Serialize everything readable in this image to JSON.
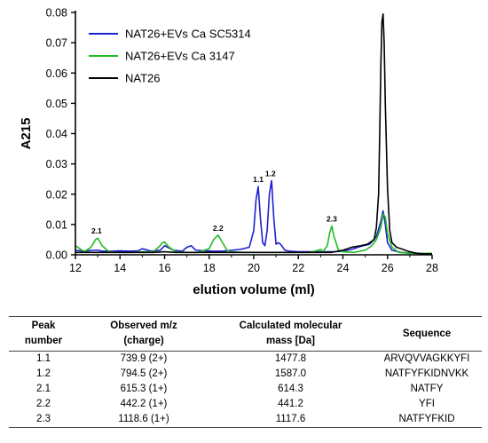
{
  "chart_data": {
    "type": "line",
    "xlabel": "elution volume (ml)",
    "ylabel": "A215",
    "xlim": [
      12,
      28
    ],
    "ylim": [
      0,
      0.08
    ],
    "xticks": [
      "12",
      "14",
      "16",
      "18",
      "20",
      "22",
      "24",
      "26",
      "28"
    ],
    "yticks": [
      "0.00",
      "0.01",
      "0.02",
      "0.03",
      "0.04",
      "0.05",
      "0.06",
      "0.07",
      "0.08"
    ],
    "legend_position": "top-left",
    "series": [
      {
        "name": "NAT26+EVs Ca SC5314",
        "color": "#1f1fd2",
        "x": [
          12.0,
          12.4,
          12.8,
          13.0,
          13.2,
          13.6,
          14.0,
          14.4,
          14.8,
          15.0,
          15.4,
          15.8,
          16.0,
          16.4,
          16.8,
          17.0,
          17.2,
          17.4,
          17.8,
          18.2,
          18.6,
          19.0,
          19.4,
          19.8,
          20.0,
          20.1,
          20.2,
          20.3,
          20.4,
          20.5,
          20.6,
          20.7,
          20.8,
          20.9,
          21.0,
          21.1,
          21.2,
          21.4,
          21.6,
          22.0,
          22.4,
          22.8,
          23.2,
          23.6,
          24.0,
          24.4,
          24.8,
          25.2,
          25.5,
          25.7,
          25.8,
          25.9,
          26.0,
          26.2,
          26.6,
          27.0,
          27.5,
          28.0
        ],
        "y": [
          0.0015,
          0.0012,
          0.0015,
          0.0015,
          0.0012,
          0.0012,
          0.0013,
          0.0012,
          0.0013,
          0.002,
          0.0012,
          0.0015,
          0.003,
          0.0015,
          0.0012,
          0.0025,
          0.003,
          0.0015,
          0.0013,
          0.0012,
          0.0012,
          0.0015,
          0.0018,
          0.0025,
          0.008,
          0.018,
          0.0225,
          0.012,
          0.004,
          0.003,
          0.008,
          0.02,
          0.0245,
          0.012,
          0.0035,
          0.004,
          0.0035,
          0.0015,
          0.0012,
          0.001,
          0.001,
          0.001,
          0.001,
          0.001,
          0.0012,
          0.0018,
          0.0028,
          0.0035,
          0.006,
          0.011,
          0.0145,
          0.01,
          0.004,
          0.0015,
          0.0008,
          0.0006,
          0.0005,
          0.0005
        ]
      },
      {
        "name": "NAT26+EVs Ca 3147",
        "color": "#22bb22",
        "x": [
          12.0,
          12.4,
          12.7,
          12.9,
          13.0,
          13.2,
          13.5,
          14.0,
          14.5,
          15.0,
          15.5,
          15.8,
          15.9,
          16.0,
          16.2,
          16.5,
          17.0,
          17.5,
          18.0,
          18.2,
          18.4,
          18.6,
          18.8,
          19.0,
          19.5,
          20.0,
          20.5,
          21.0,
          21.5,
          22.0,
          22.5,
          22.9,
          23.0,
          23.1,
          23.3,
          23.4,
          23.5,
          23.6,
          23.8,
          24.0,
          24.5,
          25.0,
          25.3,
          25.5,
          25.7,
          25.8,
          25.9,
          26.0,
          26.2,
          26.5,
          27.0,
          28.0
        ],
        "y": [
          0.003,
          0.001,
          0.0025,
          0.005,
          0.0055,
          0.003,
          0.001,
          0.0008,
          0.0008,
          0.001,
          0.001,
          0.003,
          0.004,
          0.0042,
          0.0025,
          0.001,
          0.0008,
          0.0008,
          0.002,
          0.005,
          0.0065,
          0.004,
          0.0015,
          0.001,
          0.0008,
          0.0008,
          0.0008,
          0.0008,
          0.0008,
          0.0008,
          0.0008,
          0.0015,
          0.0018,
          0.001,
          0.003,
          0.007,
          0.0095,
          0.006,
          0.0015,
          0.001,
          0.0008,
          0.0015,
          0.003,
          0.005,
          0.009,
          0.0135,
          0.0125,
          0.007,
          0.0025,
          0.0008,
          0.0005,
          0.0005
        ]
      },
      {
        "name": "NAT26",
        "color": "#000000",
        "x": [
          12.0,
          12.5,
          13.0,
          13.5,
          14.0,
          14.5,
          15.0,
          15.5,
          16.0,
          16.5,
          17.0,
          17.5,
          18.0,
          18.5,
          19.0,
          19.5,
          20.0,
          20.5,
          21.0,
          21.5,
          22.0,
          22.5,
          23.0,
          23.5,
          24.0,
          24.4,
          24.8,
          25.1,
          25.4,
          25.5,
          25.6,
          25.65,
          25.7,
          25.75,
          25.8,
          25.85,
          25.9,
          26.0,
          26.1,
          26.2,
          26.4,
          26.6,
          26.8,
          27.0,
          27.3,
          27.6,
          28.0
        ],
        "y": [
          0.0008,
          0.0008,
          0.0008,
          0.0008,
          0.0008,
          0.0008,
          0.0008,
          0.0008,
          0.001,
          0.0008,
          0.0008,
          0.0008,
          0.0008,
          0.0008,
          0.0008,
          0.0008,
          0.0008,
          0.0008,
          0.0008,
          0.0008,
          0.0008,
          0.0008,
          0.0008,
          0.0008,
          0.0015,
          0.0025,
          0.003,
          0.0035,
          0.005,
          0.009,
          0.02,
          0.04,
          0.062,
          0.077,
          0.0795,
          0.07,
          0.05,
          0.022,
          0.008,
          0.004,
          0.0025,
          0.002,
          0.0015,
          0.001,
          0.0005,
          0.0003,
          0.0003
        ]
      }
    ],
    "peak_labels": [
      {
        "text": "2.1",
        "x": 12.95,
        "y": 0.0055
      },
      {
        "text": "2.2",
        "x": 18.4,
        "y": 0.0065
      },
      {
        "text": "1.1",
        "x": 20.2,
        "y": 0.0225
      },
      {
        "text": "1.2",
        "x": 20.75,
        "y": 0.0245
      },
      {
        "text": "2.3",
        "x": 23.5,
        "y": 0.0095
      }
    ]
  },
  "table": {
    "headers": {
      "peak_line1": "Peak",
      "peak_line2": "number",
      "mz_line1": "Observed m/z",
      "mz_line2": "(charge)",
      "mass_line1": "Calculated molecular",
      "mass_line2": "mass [Da]",
      "sequence": "Sequence"
    },
    "rows": [
      {
        "peak": "1.1",
        "mz": "739.9 (2+)",
        "mass": "1477.8",
        "sequence": "ARVQVVAGKKYFI"
      },
      {
        "peak": "1.2",
        "mz": "794.5 (2+)",
        "mass": "1587.0",
        "sequence": "NATFYFKIDNVKK"
      },
      {
        "peak": "2.1",
        "mz": "615.3 (1+)",
        "mass": "614.3",
        "sequence": "NATFY"
      },
      {
        "peak": "2.2",
        "mz": "442.2 (1+)",
        "mass": "441.2",
        "sequence": "YFI"
      },
      {
        "peak": "2.3",
        "mz": "1118.6 (1+)",
        "mass": "1117.6",
        "sequence": "NATFYFKID"
      }
    ]
  }
}
